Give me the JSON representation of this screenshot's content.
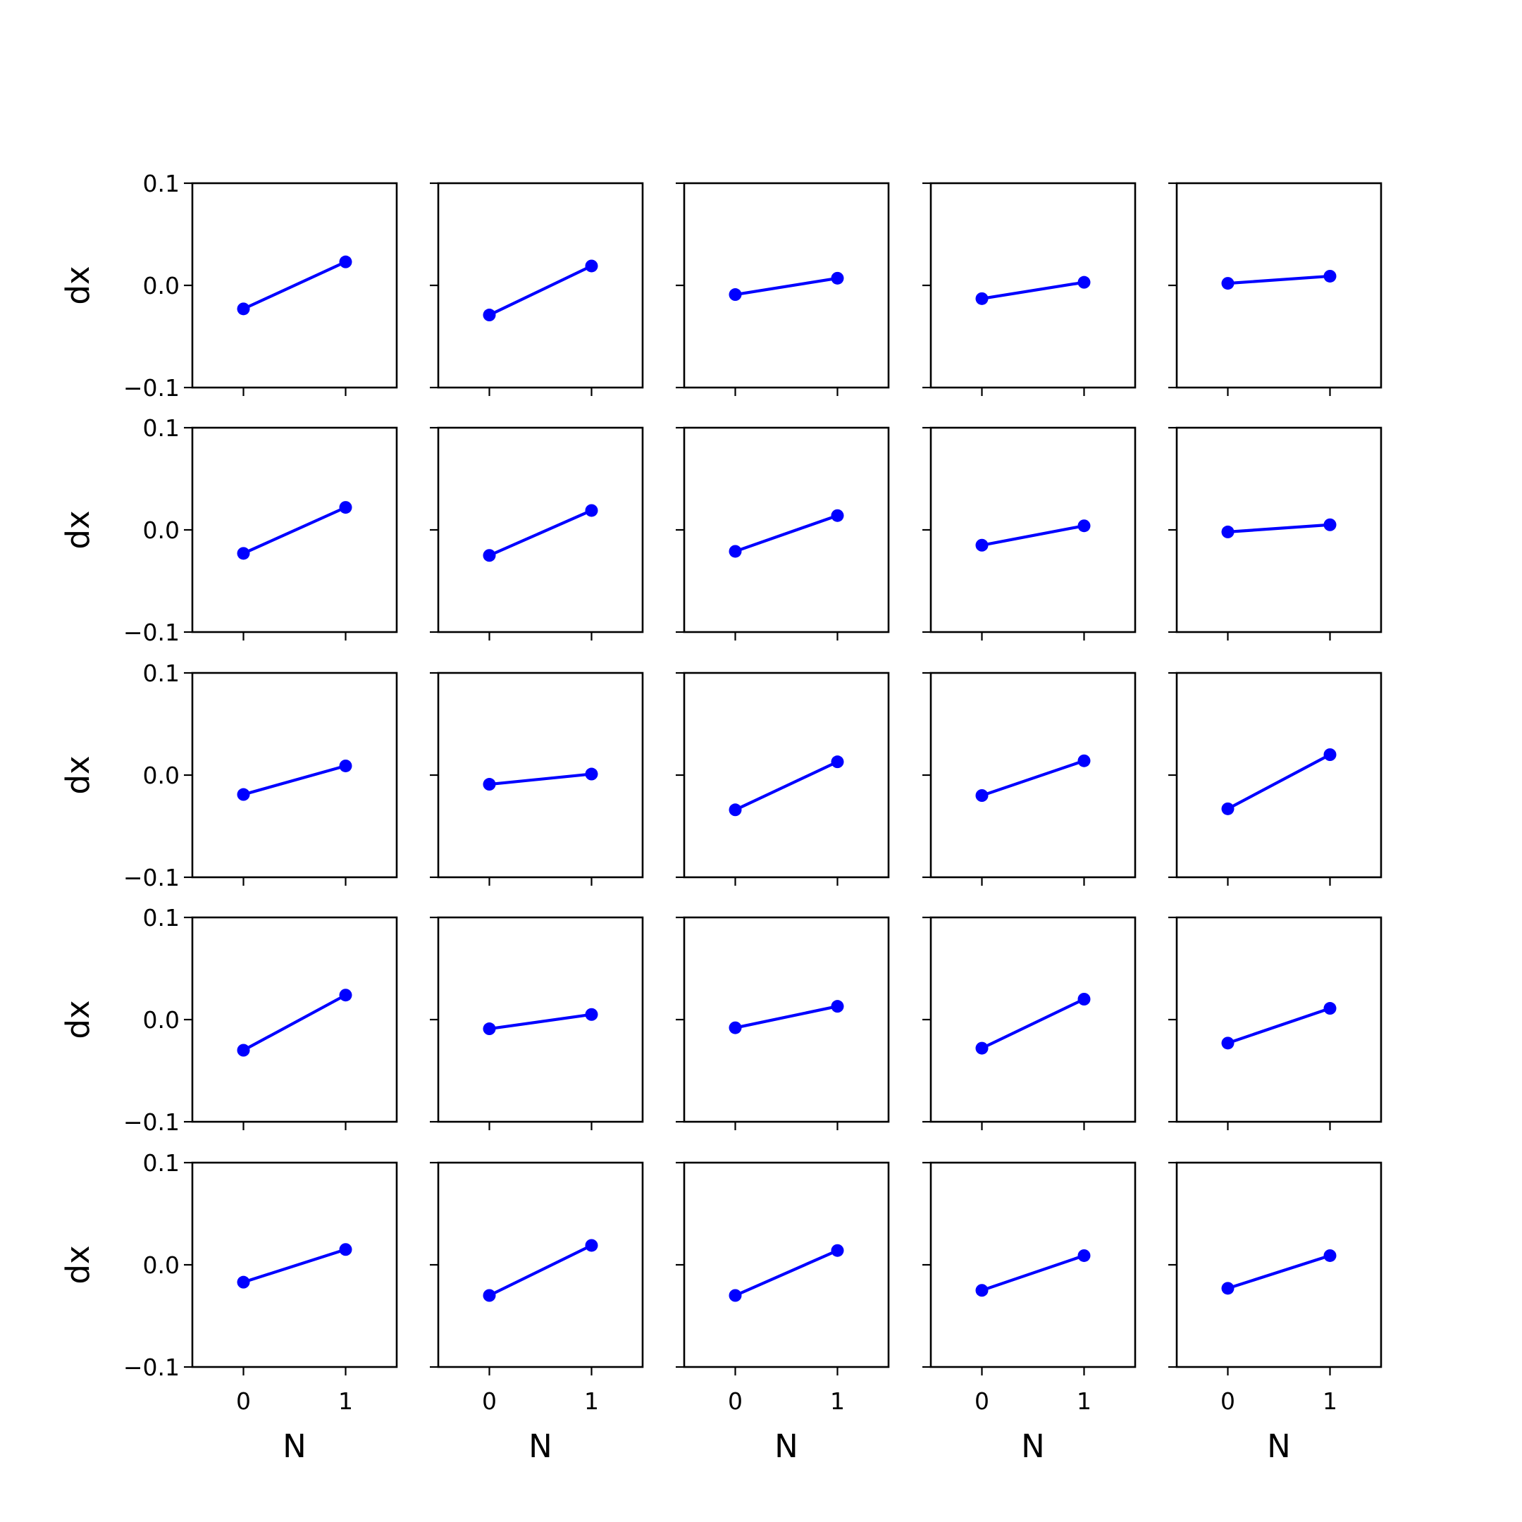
{
  "colors": {
    "line": "#0000ff",
    "marker": "#0000ff",
    "frame": "#000000",
    "background": "#ffffff"
  },
  "grid": {
    "rows": 5,
    "cols": 5
  },
  "axes": {
    "xlabel": "N",
    "ylabel": "dx",
    "xticks": [
      0,
      1
    ],
    "xtick_labels": [
      "0",
      "1"
    ],
    "yticks": [
      -0.1,
      0.0,
      0.1
    ],
    "ytick_labels": [
      "−0.1",
      "0.0",
      "0.1"
    ],
    "xlim": [
      -0.5,
      1.5
    ],
    "ylim": [
      -0.1,
      0.1
    ]
  },
  "chart_data": {
    "type": "line",
    "layout": "5x5 grid of small multiples, shared axes",
    "grid": false,
    "x": [
      0,
      1
    ],
    "panels": [
      {
        "row": 0,
        "col": 0,
        "values": [
          -0.023,
          0.023
        ]
      },
      {
        "row": 0,
        "col": 1,
        "values": [
          -0.029,
          0.019
        ]
      },
      {
        "row": 0,
        "col": 2,
        "values": [
          -0.009,
          0.007
        ]
      },
      {
        "row": 0,
        "col": 3,
        "values": [
          -0.013,
          0.003
        ]
      },
      {
        "row": 0,
        "col": 4,
        "values": [
          0.002,
          0.009
        ]
      },
      {
        "row": 1,
        "col": 0,
        "values": [
          -0.023,
          0.022
        ]
      },
      {
        "row": 1,
        "col": 1,
        "values": [
          -0.025,
          0.019
        ]
      },
      {
        "row": 1,
        "col": 2,
        "values": [
          -0.021,
          0.014
        ]
      },
      {
        "row": 1,
        "col": 3,
        "values": [
          -0.015,
          0.004
        ]
      },
      {
        "row": 1,
        "col": 4,
        "values": [
          -0.002,
          0.005
        ]
      },
      {
        "row": 2,
        "col": 0,
        "values": [
          -0.019,
          0.009
        ]
      },
      {
        "row": 2,
        "col": 1,
        "values": [
          -0.009,
          0.001
        ]
      },
      {
        "row": 2,
        "col": 2,
        "values": [
          -0.034,
          0.013
        ]
      },
      {
        "row": 2,
        "col": 3,
        "values": [
          -0.02,
          0.014
        ]
      },
      {
        "row": 2,
        "col": 4,
        "values": [
          -0.033,
          0.02
        ]
      },
      {
        "row": 3,
        "col": 0,
        "values": [
          -0.03,
          0.024
        ]
      },
      {
        "row": 3,
        "col": 1,
        "values": [
          -0.009,
          0.005
        ]
      },
      {
        "row": 3,
        "col": 2,
        "values": [
          -0.008,
          0.013
        ]
      },
      {
        "row": 3,
        "col": 3,
        "values": [
          -0.028,
          0.02
        ]
      },
      {
        "row": 3,
        "col": 4,
        "values": [
          -0.023,
          0.011
        ]
      },
      {
        "row": 4,
        "col": 0,
        "values": [
          -0.017,
          0.015
        ]
      },
      {
        "row": 4,
        "col": 1,
        "values": [
          -0.03,
          0.019
        ]
      },
      {
        "row": 4,
        "col": 2,
        "values": [
          -0.03,
          0.014
        ]
      },
      {
        "row": 4,
        "col": 3,
        "values": [
          -0.025,
          0.009
        ]
      },
      {
        "row": 4,
        "col": 4,
        "values": [
          -0.023,
          0.009
        ]
      }
    ]
  }
}
